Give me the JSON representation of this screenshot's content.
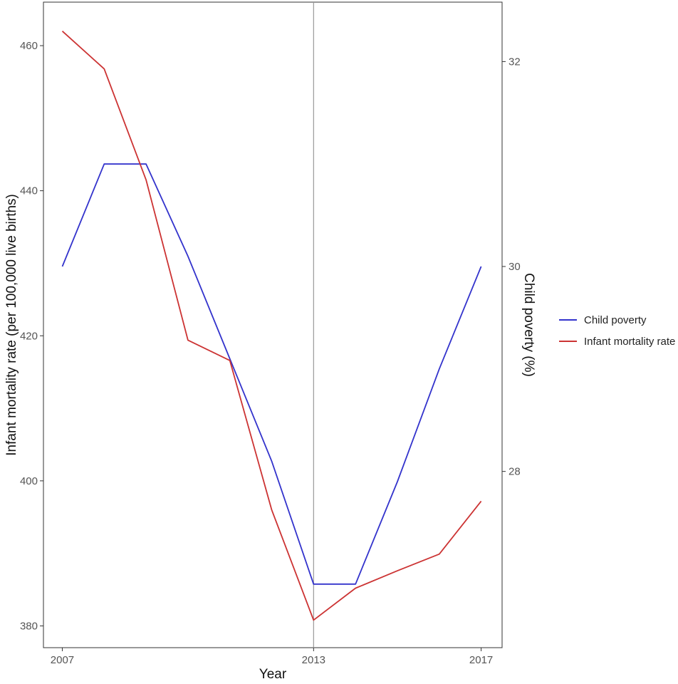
{
  "chart_data": {
    "type": "line",
    "xlabel": "Year",
    "ylabel_left": "Infant mortality rate (per 100,000 live births)",
    "ylabel_right": "Child poverty (%)",
    "x_ticks": [
      2007,
      2013,
      2017
    ],
    "xlim": [
      2006.55,
      2017.5
    ],
    "y_left_ticks": [
      380,
      400,
      420,
      440,
      460
    ],
    "y_left_lim": [
      377,
      466
    ],
    "y_right_ticks": [
      28,
      30,
      32
    ],
    "y_right_lim": [
      26.28,
      32.58
    ],
    "reference_line_x": 2013,
    "legend_position": "right",
    "colors": {
      "Child poverty": "#3333cc",
      "Infant mortality rate": "#cc3333",
      "reference_line": "#999999"
    },
    "series": [
      {
        "name": "Child poverty",
        "axis": "right",
        "x": [
          2007,
          2008,
          2009,
          2010,
          2011,
          2012,
          2013,
          2014,
          2015,
          2016,
          2017
        ],
        "values": [
          30.0,
          31.0,
          31.0,
          30.1,
          29.1,
          28.1,
          26.9,
          26.9,
          27.9,
          29.0,
          30.0
        ]
      },
      {
        "name": "Infant mortality rate",
        "axis": "left",
        "x": [
          2007,
          2008,
          2009,
          2010,
          2011,
          2012,
          2013,
          2014,
          2015,
          2016,
          2017
        ],
        "values": [
          462,
          456.8,
          441.5,
          419.4,
          416.6,
          396,
          380.8,
          385.2,
          387.6,
          389.9,
          397.2
        ]
      }
    ],
    "legend": [
      "Child poverty",
      "Infant mortality rate"
    ]
  }
}
